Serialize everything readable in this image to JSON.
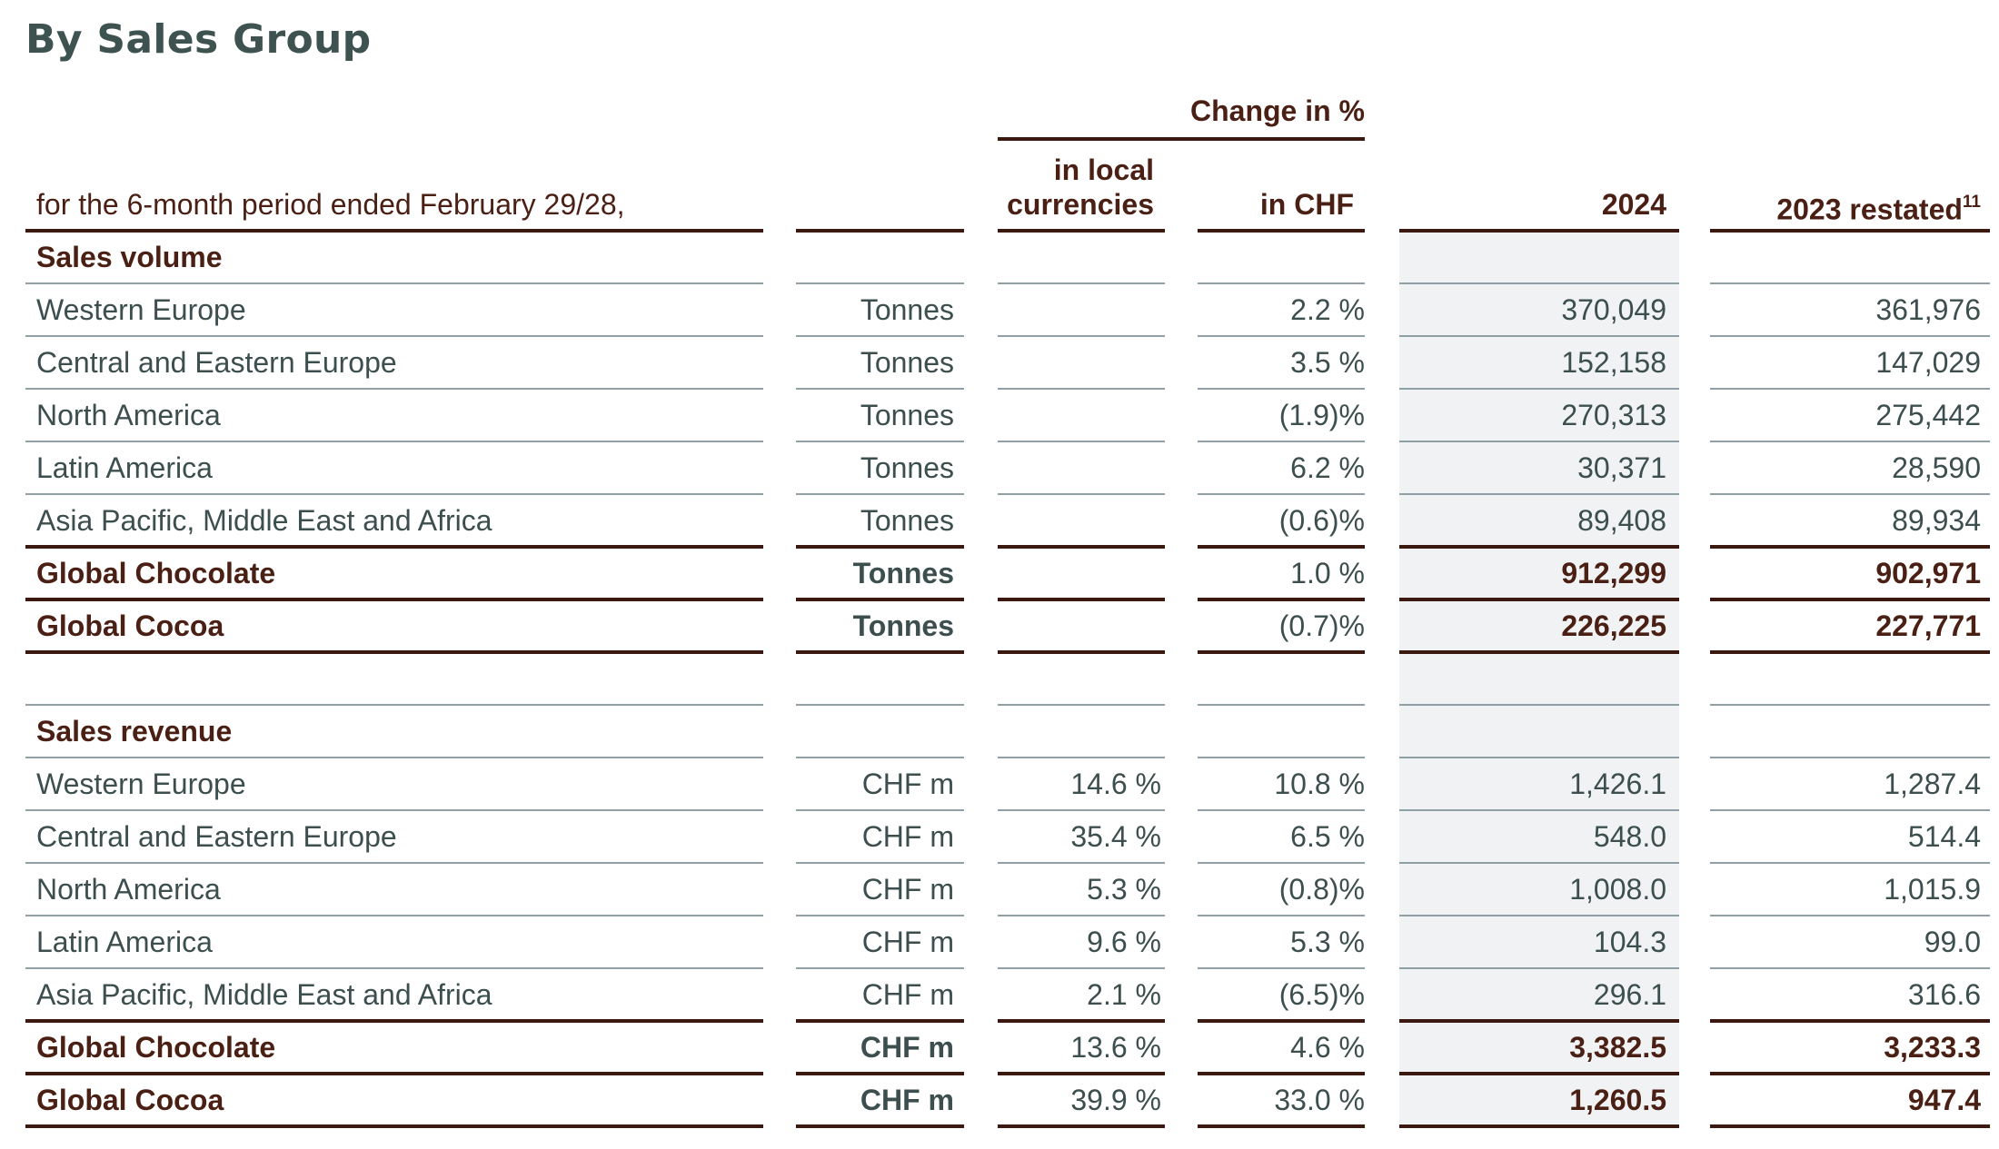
{
  "title": "By Sales Group",
  "header": {
    "change_group": "Change in %",
    "period": "for the 6-month period ended February 29/28,",
    "col_local_line1": "in local",
    "col_local_line2": "currencies",
    "col_chf": "in CHF",
    "col_2024": "2024",
    "col_2023": "2023 restated",
    "col_2023_footnote": "11"
  },
  "rows": [
    {
      "label": "Sales volume",
      "unit": "",
      "local": "",
      "chf": "",
      "y2024": "",
      "y2023": ""
    },
    {
      "label": "Western Europe",
      "unit": "Tonnes",
      "local": "",
      "chf": "2.2 %",
      "y2024": "370,049",
      "y2023": "361,976"
    },
    {
      "label": "Central and Eastern Europe",
      "unit": "Tonnes",
      "local": "",
      "chf": "3.5 %",
      "y2024": "152,158",
      "y2023": "147,029"
    },
    {
      "label": "North America",
      "unit": "Tonnes",
      "local": "",
      "chf": "(1.9)%",
      "y2024": "270,313",
      "y2023": "275,442"
    },
    {
      "label": "Latin America",
      "unit": "Tonnes",
      "local": "",
      "chf": "6.2 %",
      "y2024": "30,371",
      "y2023": "28,590"
    },
    {
      "label": "Asia Pacific, Middle East and Africa",
      "unit": "Tonnes",
      "local": "",
      "chf": "(0.6)%",
      "y2024": "89,408",
      "y2023": "89,934"
    },
    {
      "label": "Global Chocolate",
      "unit": "Tonnes",
      "local": "",
      "chf": "1.0 %",
      "y2024": "912,299",
      "y2023": "902,971"
    },
    {
      "label": "Global Cocoa",
      "unit": "Tonnes",
      "local": "",
      "chf": "(0.7)%",
      "y2024": "226,225",
      "y2023": "227,771"
    },
    {
      "label": "",
      "unit": "",
      "local": "",
      "chf": "",
      "y2024": "",
      "y2023": ""
    },
    {
      "label": "Sales revenue",
      "unit": "",
      "local": "",
      "chf": "",
      "y2024": "",
      "y2023": ""
    },
    {
      "label": "Western Europe",
      "unit": "CHF m",
      "local": "14.6 %",
      "chf": "10.8 %",
      "y2024": "1,426.1",
      "y2023": "1,287.4"
    },
    {
      "label": "Central and Eastern Europe",
      "unit": "CHF m",
      "local": "35.4 %",
      "chf": "6.5 %",
      "y2024": "548.0",
      "y2023": "514.4"
    },
    {
      "label": "North America",
      "unit": "CHF m",
      "local": "5.3 %",
      "chf": "(0.8)%",
      "y2024": "1,008.0",
      "y2023": "1,015.9"
    },
    {
      "label": "Latin America",
      "unit": "CHF m",
      "local": "9.6 %",
      "chf": "5.3 %",
      "y2024": "104.3",
      "y2023": "99.0"
    },
    {
      "label": "Asia Pacific, Middle East and Africa",
      "unit": "CHF m",
      "local": "2.1 %",
      "chf": "(6.5)%",
      "y2024": "296.1",
      "y2023": "316.6"
    },
    {
      "label": "Global Chocolate",
      "unit": "CHF m",
      "local": "13.6 %",
      "chf": "4.6 %",
      "y2024": "3,382.5",
      "y2023": "3,233.3"
    },
    {
      "label": "Global Cocoa",
      "unit": "CHF m",
      "local": "39.9 %",
      "chf": "33.0 %",
      "y2024": "1,260.5",
      "y2023": "947.4"
    }
  ]
}
